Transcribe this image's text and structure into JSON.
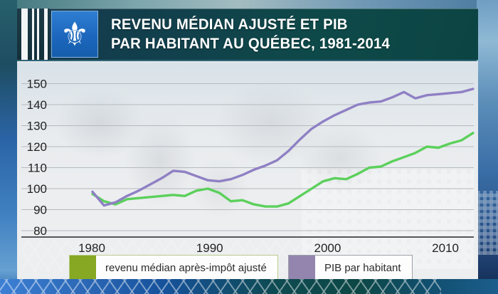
{
  "header": {
    "title_line1": "REVENU MÉDIAN AJUSTÉ ET PIB",
    "title_line2": "PAR HABITANT AU QUÉBEC, 1981-2014",
    "flag_icon": "quebec-fleur-de-lis",
    "flag_glyph": "⚜",
    "flag_color": "#1c6bc7",
    "band_color": "#0e4949"
  },
  "chart_data": {
    "type": "line",
    "title": "Revenu médian ajusté et PIB par habitant au Québec, 1981-2014",
    "x_start_year": 1981,
    "x": [
      1981,
      1982,
      1983,
      1984,
      1985,
      1986,
      1987,
      1988,
      1989,
      1990,
      1991,
      1992,
      1993,
      1994,
      1995,
      1996,
      1997,
      1998,
      1999,
      2000,
      2001,
      2002,
      2003,
      2004,
      2005,
      2006,
      2007,
      2008,
      2009,
      2010,
      2011,
      2012,
      2013,
      2014
    ],
    "series": [
      {
        "name": "revenu médian après-impôt ajusté",
        "line_color": "#5bd05b",
        "swatch_color": "#87a822",
        "values": [
          97.5,
          94,
          92.5,
          95,
          95.5,
          96,
          96.5,
          97,
          96.5,
          99,
          100,
          98,
          94,
          94.5,
          92.5,
          91.5,
          91.5,
          93,
          96.5,
          100,
          103.5,
          105,
          104.5,
          107,
          110,
          110.5,
          113,
          115,
          117,
          120,
          119.5,
          121.5,
          123,
          126.5
        ]
      },
      {
        "name": "PIB par habitant",
        "line_color": "#8f80c4",
        "swatch_color": "#9485ae",
        "values": [
          98.5,
          92,
          93.5,
          96.5,
          99,
          102,
          105,
          108.5,
          108,
          106,
          104,
          103.5,
          104.5,
          106.5,
          109,
          111,
          113.5,
          118,
          123.5,
          128.5,
          132,
          135,
          137.5,
          140,
          141,
          141.5,
          143.5,
          146,
          143,
          144.5,
          145,
          145.5,
          146,
          147.5
        ]
      }
    ],
    "y_ticks": [
      150,
      140,
      130,
      120,
      110,
      100,
      90,
      80
    ],
    "x_ticks": [
      1980,
      1990,
      2000,
      2010
    ],
    "ylim": [
      76,
      155
    ],
    "grid": true,
    "grid_color": "#b6babf",
    "axis_color": "#54585c",
    "tick_label_color": "#222222",
    "legend_position": "bottom"
  }
}
